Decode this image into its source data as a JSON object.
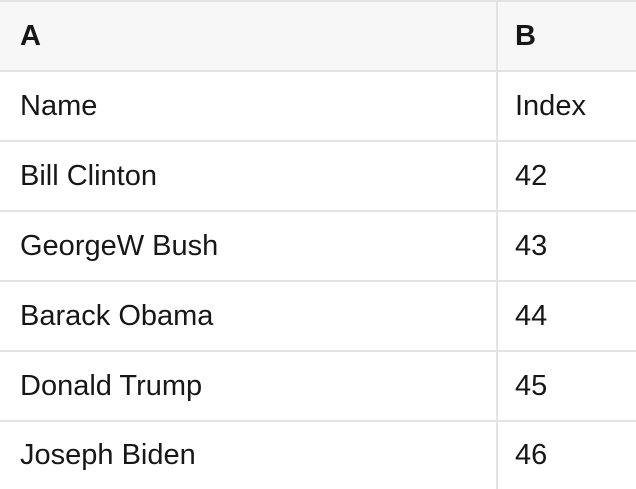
{
  "theme": {
    "border_color": "#e3e3e3",
    "header_bg": "#f7f7f7",
    "row_bg": "#ffffff",
    "text_color": "#171717"
  },
  "table": {
    "columns": [
      "A",
      "B"
    ],
    "rows": [
      {
        "a": "Name",
        "b": "Index"
      },
      {
        "a": "Bill Clinton",
        "b": "42"
      },
      {
        "a": "GeorgeW Bush",
        "b": "43"
      },
      {
        "a": "Barack Obama",
        "b": "44"
      },
      {
        "a": "Donald Trump",
        "b": "45"
      },
      {
        "a": "Joseph Biden",
        "b": "46"
      }
    ]
  }
}
